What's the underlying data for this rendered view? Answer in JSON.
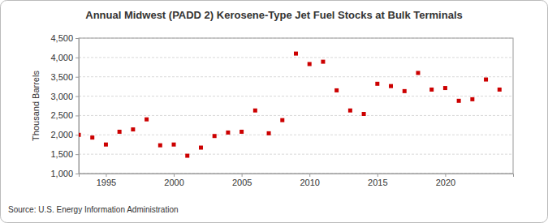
{
  "chart_data": {
    "type": "scatter",
    "title": "Annual Midwest (PADD 2) Kerosene-Type Jet Fuel Stocks at Bulk Terminals",
    "y_label": "Thousand Barrels",
    "source": "Source: U.S. Energy Information Administration",
    "x": [
      1993,
      1994,
      1995,
      1996,
      1997,
      1998,
      1999,
      2000,
      2001,
      2002,
      2003,
      2004,
      2005,
      2006,
      2007,
      2008,
      2009,
      2010,
      2011,
      2012,
      2013,
      2014,
      2015,
      2016,
      2017,
      2018,
      2019,
      2020,
      2021,
      2022,
      2023,
      2024
    ],
    "values": [
      2000,
      1930,
      1750,
      2080,
      2140,
      2400,
      1730,
      1750,
      1460,
      1670,
      1970,
      2060,
      2080,
      2630,
      2040,
      2380,
      4100,
      3830,
      3890,
      3150,
      2630,
      2540,
      3320,
      3260,
      3130,
      3600,
      3170,
      3210,
      2880,
      2920,
      3430,
      3170
    ],
    "color": "#cc0000",
    "marker": "square",
    "xlim": [
      1993,
      2025
    ],
    "xticks": [
      1995,
      2000,
      2005,
      2010,
      2015,
      2020
    ],
    "ylim": [
      1000,
      4500
    ],
    "yticks": [
      {
        "value": 1000,
        "label": "1,000"
      },
      {
        "value": 1500,
        "label": "1,500"
      },
      {
        "value": 2000,
        "label": "2,000"
      },
      {
        "value": 2500,
        "label": "2,500"
      },
      {
        "value": 3000,
        "label": "3,000"
      },
      {
        "value": 3500,
        "label": "3,500"
      },
      {
        "value": 4000,
        "label": "4,000"
      },
      {
        "value": 4500,
        "label": "4,500"
      }
    ],
    "grid": true
  }
}
